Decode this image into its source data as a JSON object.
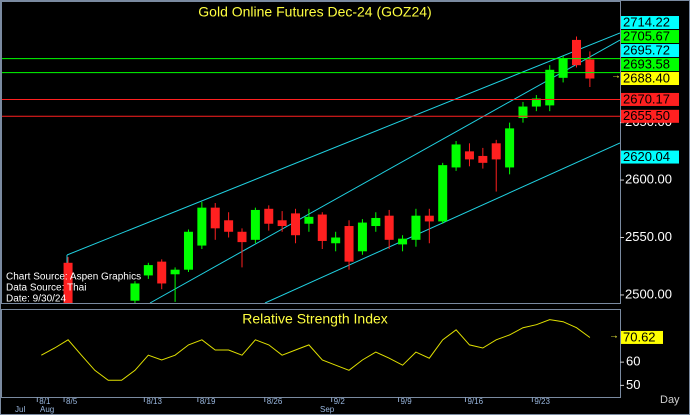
{
  "chart_data": [
    {
      "type": "candlestick",
      "title": "Gold Online Futures Dec-24 (GOZ24)",
      "categories": [
        "8/1",
        null,
        "8/5",
        null,
        null,
        null,
        null,
        null,
        "8/13",
        null,
        null,
        null,
        "8/19",
        null,
        null,
        null,
        null,
        "8/26",
        null,
        null,
        null,
        null,
        "9/2",
        null,
        null,
        null,
        null,
        "9/9",
        null,
        null,
        null,
        null,
        "9/16",
        null,
        null,
        null,
        null,
        "9/23",
        null,
        null,
        null,
        null
      ],
      "month_labels": [
        "Jul",
        "Aug",
        "Sep"
      ],
      "open": [
        null,
        null,
        2528,
        null,
        null,
        null,
        null,
        2495,
        2517,
        2529,
        2518,
        2522,
        2543,
        2576,
        2565,
        2555,
        2548,
        2575,
        2565,
        2571,
        2562,
        2570,
        2545,
        2560,
        2538,
        2560,
        2569,
        2544,
        2548,
        2569,
        2564,
        2611,
        2625,
        2621,
        2632,
        2611,
        2654,
        2664,
        2665,
        2689,
        2722,
        2705
      ],
      "high": [
        null,
        null,
        2533,
        null,
        null,
        null,
        null,
        2512,
        2528,
        2531,
        2524,
        2557,
        2581,
        2580,
        2572,
        2558,
        2576,
        2578,
        2573,
        2575,
        2575,
        2572,
        2555,
        2565,
        2566,
        2572,
        2574,
        2552,
        2575,
        2575,
        2615,
        2634,
        2632,
        2628,
        2635,
        2650,
        2668,
        2674,
        2700,
        2708,
        2725,
        2712
      ],
      "low": [
        null,
        null,
        2480,
        null,
        null,
        null,
        null,
        2490,
        2514,
        2505,
        2494,
        2520,
        2540,
        2548,
        2550,
        2524,
        2545,
        2556,
        2555,
        2545,
        2555,
        2540,
        2538,
        2522,
        2535,
        2555,
        2540,
        2538,
        2542,
        2545,
        2562,
        2608,
        2612,
        2610,
        2590,
        2605,
        2650,
        2660,
        2660,
        2685,
        2698,
        2681
      ],
      "close": [
        null,
        null,
        2490,
        null,
        null,
        null,
        null,
        2510,
        2526,
        2510,
        2522,
        2555,
        2576,
        2558,
        2555,
        2546,
        2574,
        2562,
        2560,
        2552,
        2568,
        2547,
        2550,
        2529,
        2563,
        2567,
        2548,
        2549,
        2569,
        2564,
        2613,
        2631,
        2618,
        2615,
        2618,
        2645,
        2664,
        2671,
        2696,
        2706,
        2700,
        2688.4
      ],
      "up_color": "#00ff00",
      "down_color": "#ff2020",
      "ylim": [
        2493,
        2755
      ],
      "yticks": [
        {
          "value": 2500,
          "label": "2500.00"
        },
        {
          "value": 2550,
          "label": "2550.00"
        },
        {
          "value": 2600,
          "label": "2600.00"
        },
        {
          "value": 2650,
          "label": "2650.00"
        }
      ],
      "levels": [
        {
          "value": 2714.22,
          "color": "#00ffff",
          "line": false
        },
        {
          "value": 2705.67,
          "color": "#00ff00",
          "line": true
        },
        {
          "value": 2695.72,
          "color": "#00ffff",
          "line": false
        },
        {
          "value": 2693.58,
          "color": "#00ff00",
          "line": true
        },
        {
          "value": 2688.4,
          "label": "2688.40",
          "color": "#ffff00",
          "line": false
        },
        {
          "value": 2670.17,
          "color": "#ff2020",
          "line": true
        },
        {
          "value": 2655.5,
          "label": "2655.50",
          "color": "#ff2020",
          "line": true
        },
        {
          "value": 2620.04,
          "color": "#00ffff",
          "line": false
        }
      ],
      "sources": [
        "Chart Source: Aspen Graphics",
        "Data Source: Thai",
        "Date: 9/30/24"
      ]
    },
    {
      "type": "line",
      "title": "Relative Strength Index",
      "xlabel": "Day",
      "series": [
        {
          "color": "#e0e000",
          "values": [
            63.0,
            66.1,
            69.6,
            63.0,
            56.5,
            52.2,
            52.2,
            56.5,
            63.0,
            60.9,
            63.0,
            67.4,
            69.6,
            65.2,
            65.2,
            63.0,
            69.6,
            67.4,
            63.0,
            65.2,
            67.4,
            60.9,
            58.7,
            56.5,
            60.9,
            64.3,
            61.7,
            58.7,
            64.3,
            61.7,
            69.6,
            73.9,
            67.4,
            66.1,
            69.6,
            71.7,
            74.8,
            76.1,
            78.3,
            77.4,
            74.8,
            70.62
          ]
        }
      ],
      "ylim": [
        45,
        82
      ],
      "yticks": [
        50,
        60
      ]
    }
  ]
}
